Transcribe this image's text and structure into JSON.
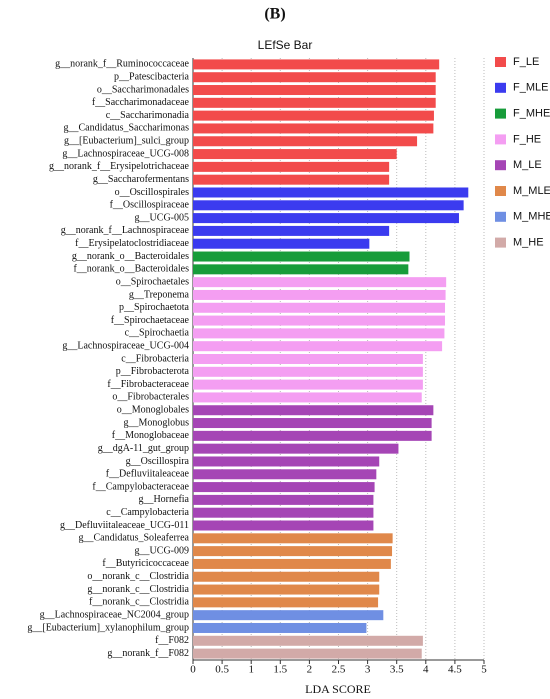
{
  "chart_data": {
    "type": "bar",
    "orientation": "horizontal",
    "title": "(B)",
    "subtitle": "LEfSe Bar",
    "x_label": "LDA SCORE",
    "categories": [
      "g__norank_f__Ruminococcaceae",
      "p__Patescibacteria",
      "o__Saccharimonadales",
      "f__Saccharimonadaceae",
      "c__Saccharimonadia",
      "g__Candidatus_Saccharimonas",
      "g__[Eubacterium]_sulci_group",
      "g__Lachnospiraceae_UCG-008",
      "g__norank_f__Erysipelotrichaceae",
      "g__Saccharofermentans",
      "o__Oscillospirales",
      "f__Oscillospiraceae",
      "g__UCG-005",
      "g__norank_f__Lachnospiraceae",
      "f__Erysipelatoclostridiaceae",
      "g__norank_o__Bacteroidales",
      "f__norank_o__Bacteroidales",
      "o__Spirochaetales",
      "g__Treponema",
      "p__Spirochaetota",
      "f__Spirochaetaceae",
      "c__Spirochaetia",
      "g__Lachnospiraceae_UCG-004",
      "c__Fibrobacteria",
      "p__Fibrobacterota",
      "f__Fibrobacteraceae",
      "o__Fibrobacterales",
      "o__Monoglobales",
      "g__Monoglobus",
      "f__Monoglobaceae",
      "g__dgA-11_gut_group",
      "g__Oscillospira",
      "f__Defluviitaleaceae",
      "f__Campylobacteraceae",
      "g__Hornefia",
      "c__Campylobacteria",
      "g__Defluviitaleaceae_UCG-011",
      "g__Candidatus_Soleaferrea",
      "g__UCG-009",
      "f__Butyricicoccaceae",
      "o__norank_c__Clostridia",
      "g__norank_c__Clostridia",
      "f__norank_c__Clostridia",
      "g__Lachnospiraceae_NC2004_group",
      "g__[Eubacterium]_xylanophilum_group",
      "f__F082",
      "g__norank_f__F082"
    ],
    "series": [
      {
        "name": "F_LE",
        "color": "#f24b4b",
        "values": [
          4.23,
          4.17,
          4.17,
          4.17,
          4.14,
          4.13,
          3.85,
          3.5,
          3.37,
          3.37,
          null,
          null,
          null,
          null,
          null,
          null,
          null,
          null,
          null,
          null,
          null,
          null,
          null,
          null,
          null,
          null,
          null,
          null,
          null,
          null,
          null,
          null,
          null,
          null,
          null,
          null,
          null,
          null,
          null,
          null,
          null,
          null,
          null,
          null,
          null,
          null,
          null
        ]
      },
      {
        "name": "F_MLE",
        "color": "#3b3bef",
        "values": [
          null,
          null,
          null,
          null,
          null,
          null,
          null,
          null,
          null,
          null,
          4.73,
          4.65,
          4.57,
          3.37,
          3.03,
          null,
          null,
          null,
          null,
          null,
          null,
          null,
          null,
          null,
          null,
          null,
          null,
          null,
          null,
          null,
          null,
          null,
          null,
          null,
          null,
          null,
          null,
          null,
          null,
          null,
          null,
          null,
          null,
          null,
          null,
          null,
          null
        ]
      },
      {
        "name": "F_MHE",
        "color": "#179c3a",
        "values": [
          null,
          null,
          null,
          null,
          null,
          null,
          null,
          null,
          null,
          null,
          null,
          null,
          null,
          null,
          null,
          3.72,
          3.7,
          null,
          null,
          null,
          null,
          null,
          null,
          null,
          null,
          null,
          null,
          null,
          null,
          null,
          null,
          null,
          null,
          null,
          null,
          null,
          null,
          null,
          null,
          null,
          null,
          null,
          null,
          null,
          null,
          null,
          null
        ]
      },
      {
        "name": "F_HE",
        "color": "#f49ef2",
        "values": [
          null,
          null,
          null,
          null,
          null,
          null,
          null,
          null,
          null,
          null,
          null,
          null,
          null,
          null,
          null,
          null,
          null,
          4.35,
          4.34,
          4.33,
          4.33,
          4.32,
          4.28,
          3.95,
          3.95,
          3.95,
          3.93,
          null,
          null,
          null,
          null,
          null,
          null,
          null,
          null,
          null,
          null,
          null,
          null,
          null,
          null,
          null,
          null,
          null,
          null,
          null,
          null
        ]
      },
      {
        "name": "M_LE",
        "color": "#a545b5",
        "values": [
          null,
          null,
          null,
          null,
          null,
          null,
          null,
          null,
          null,
          null,
          null,
          null,
          null,
          null,
          null,
          null,
          null,
          null,
          null,
          null,
          null,
          null,
          null,
          null,
          null,
          null,
          null,
          4.13,
          4.1,
          4.1,
          3.53,
          3.2,
          3.15,
          3.12,
          3.1,
          3.1,
          3.1,
          null,
          null,
          null,
          null,
          null,
          null,
          null,
          null,
          null,
          null
        ]
      },
      {
        "name": "M_MLE",
        "color": "#e0884a",
        "values": [
          null,
          null,
          null,
          null,
          null,
          null,
          null,
          null,
          null,
          null,
          null,
          null,
          null,
          null,
          null,
          null,
          null,
          null,
          null,
          null,
          null,
          null,
          null,
          null,
          null,
          null,
          null,
          null,
          null,
          null,
          null,
          null,
          null,
          null,
          null,
          null,
          null,
          3.43,
          3.42,
          3.4,
          3.2,
          3.2,
          3.18,
          null,
          null,
          null,
          null
        ]
      },
      {
        "name": "M_MHE",
        "color": "#6f8fe3",
        "values": [
          null,
          null,
          null,
          null,
          null,
          null,
          null,
          null,
          null,
          null,
          null,
          null,
          null,
          null,
          null,
          null,
          null,
          null,
          null,
          null,
          null,
          null,
          null,
          null,
          null,
          null,
          null,
          null,
          null,
          null,
          null,
          null,
          null,
          null,
          null,
          null,
          null,
          null,
          null,
          null,
          null,
          null,
          null,
          3.27,
          2.98,
          null,
          null
        ]
      },
      {
        "name": "M_HE",
        "color": "#d2aaa8",
        "values": [
          null,
          null,
          null,
          null,
          null,
          null,
          null,
          null,
          null,
          null,
          null,
          null,
          null,
          null,
          null,
          null,
          null,
          null,
          null,
          null,
          null,
          null,
          null,
          null,
          null,
          null,
          null,
          null,
          null,
          null,
          null,
          null,
          null,
          null,
          null,
          null,
          null,
          null,
          null,
          null,
          null,
          null,
          null,
          null,
          null,
          3.95,
          3.93
        ]
      }
    ],
    "xlim": [
      0,
      5
    ],
    "xticks": [
      0,
      0.5,
      1,
      1.5,
      2,
      2.5,
      3,
      3.5,
      4,
      4.5,
      5
    ],
    "grid": true
  }
}
